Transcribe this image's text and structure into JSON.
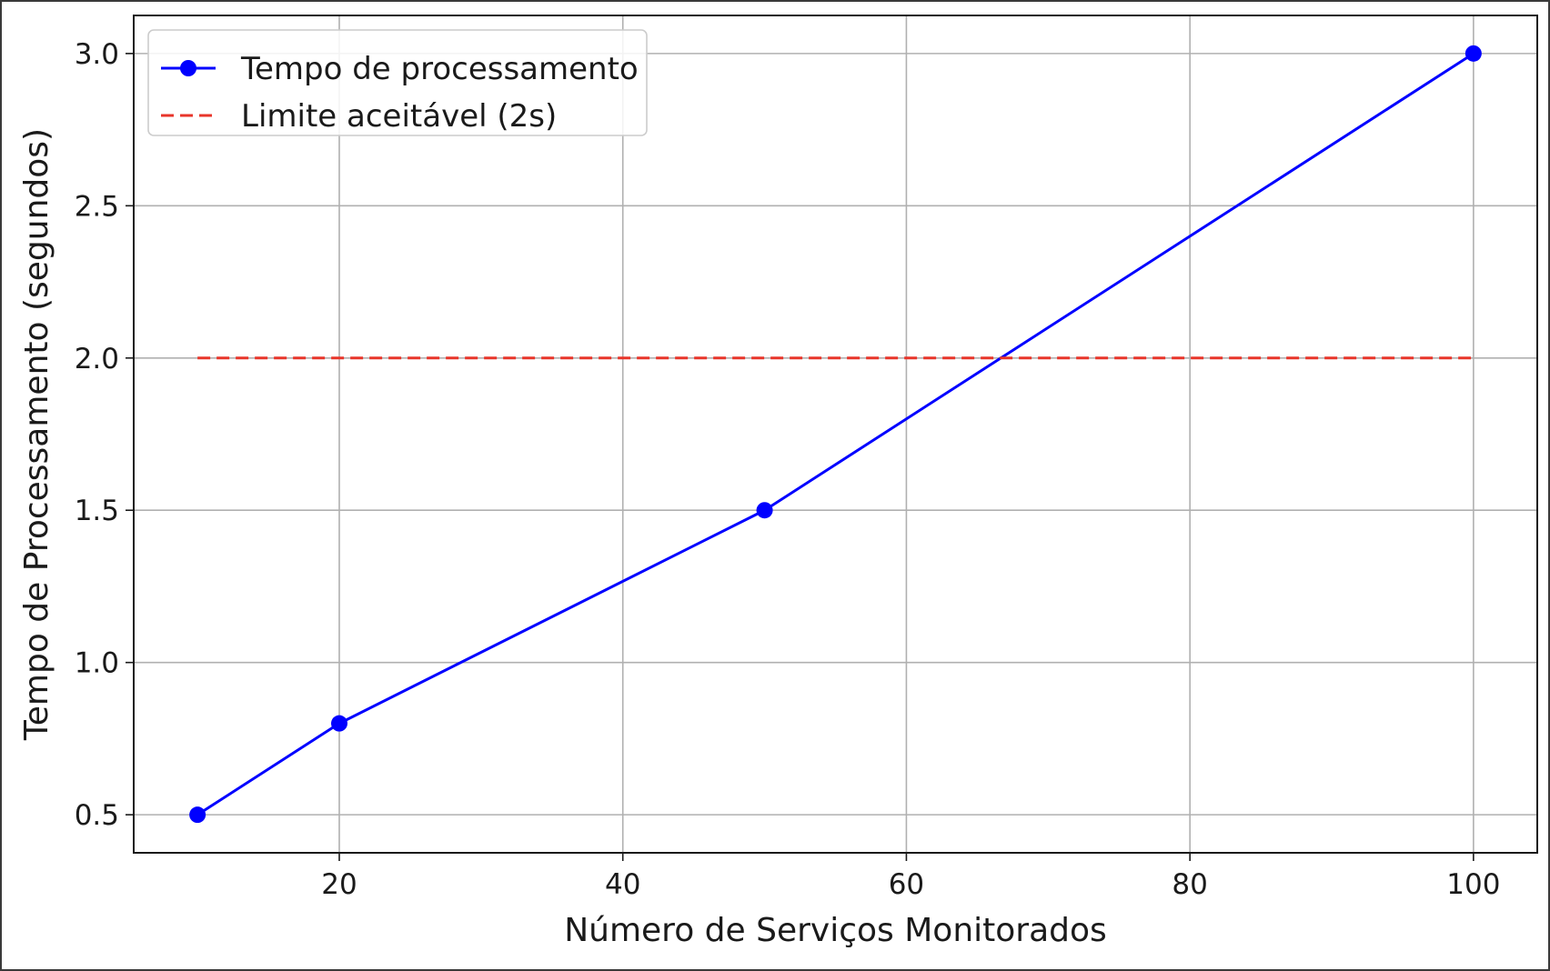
{
  "chart_data": {
    "type": "line",
    "title": "",
    "xlabel": "Número de Serviços Monitorados",
    "ylabel": "Tempo de Processamento (segundos)",
    "xlim": [
      5.5,
      104.5
    ],
    "ylim": [
      0.375,
      3.125
    ],
    "xticks": [
      20,
      40,
      60,
      80,
      100
    ],
    "yticks": [
      0.5,
      1.0,
      1.5,
      2.0,
      2.5,
      3.0
    ],
    "xtick_labels": [
      "20",
      "40",
      "60",
      "80",
      "100"
    ],
    "ytick_labels": [
      "0.5",
      "1.0",
      "1.5",
      "2.0",
      "2.5",
      "3.0"
    ],
    "grid": true,
    "legend_position": "top-left",
    "series": [
      {
        "name": "Tempo de processamento",
        "style": "solid-with-markers",
        "color": "#0000ff",
        "x": [
          10,
          20,
          50,
          100
        ],
        "y": [
          0.5,
          0.8,
          1.5,
          3.0
        ]
      },
      {
        "name": "Limite aceitável (2s)",
        "style": "dashed",
        "color": "#e8352a",
        "x": [
          10,
          100
        ],
        "y": [
          2.0,
          2.0
        ]
      }
    ]
  }
}
